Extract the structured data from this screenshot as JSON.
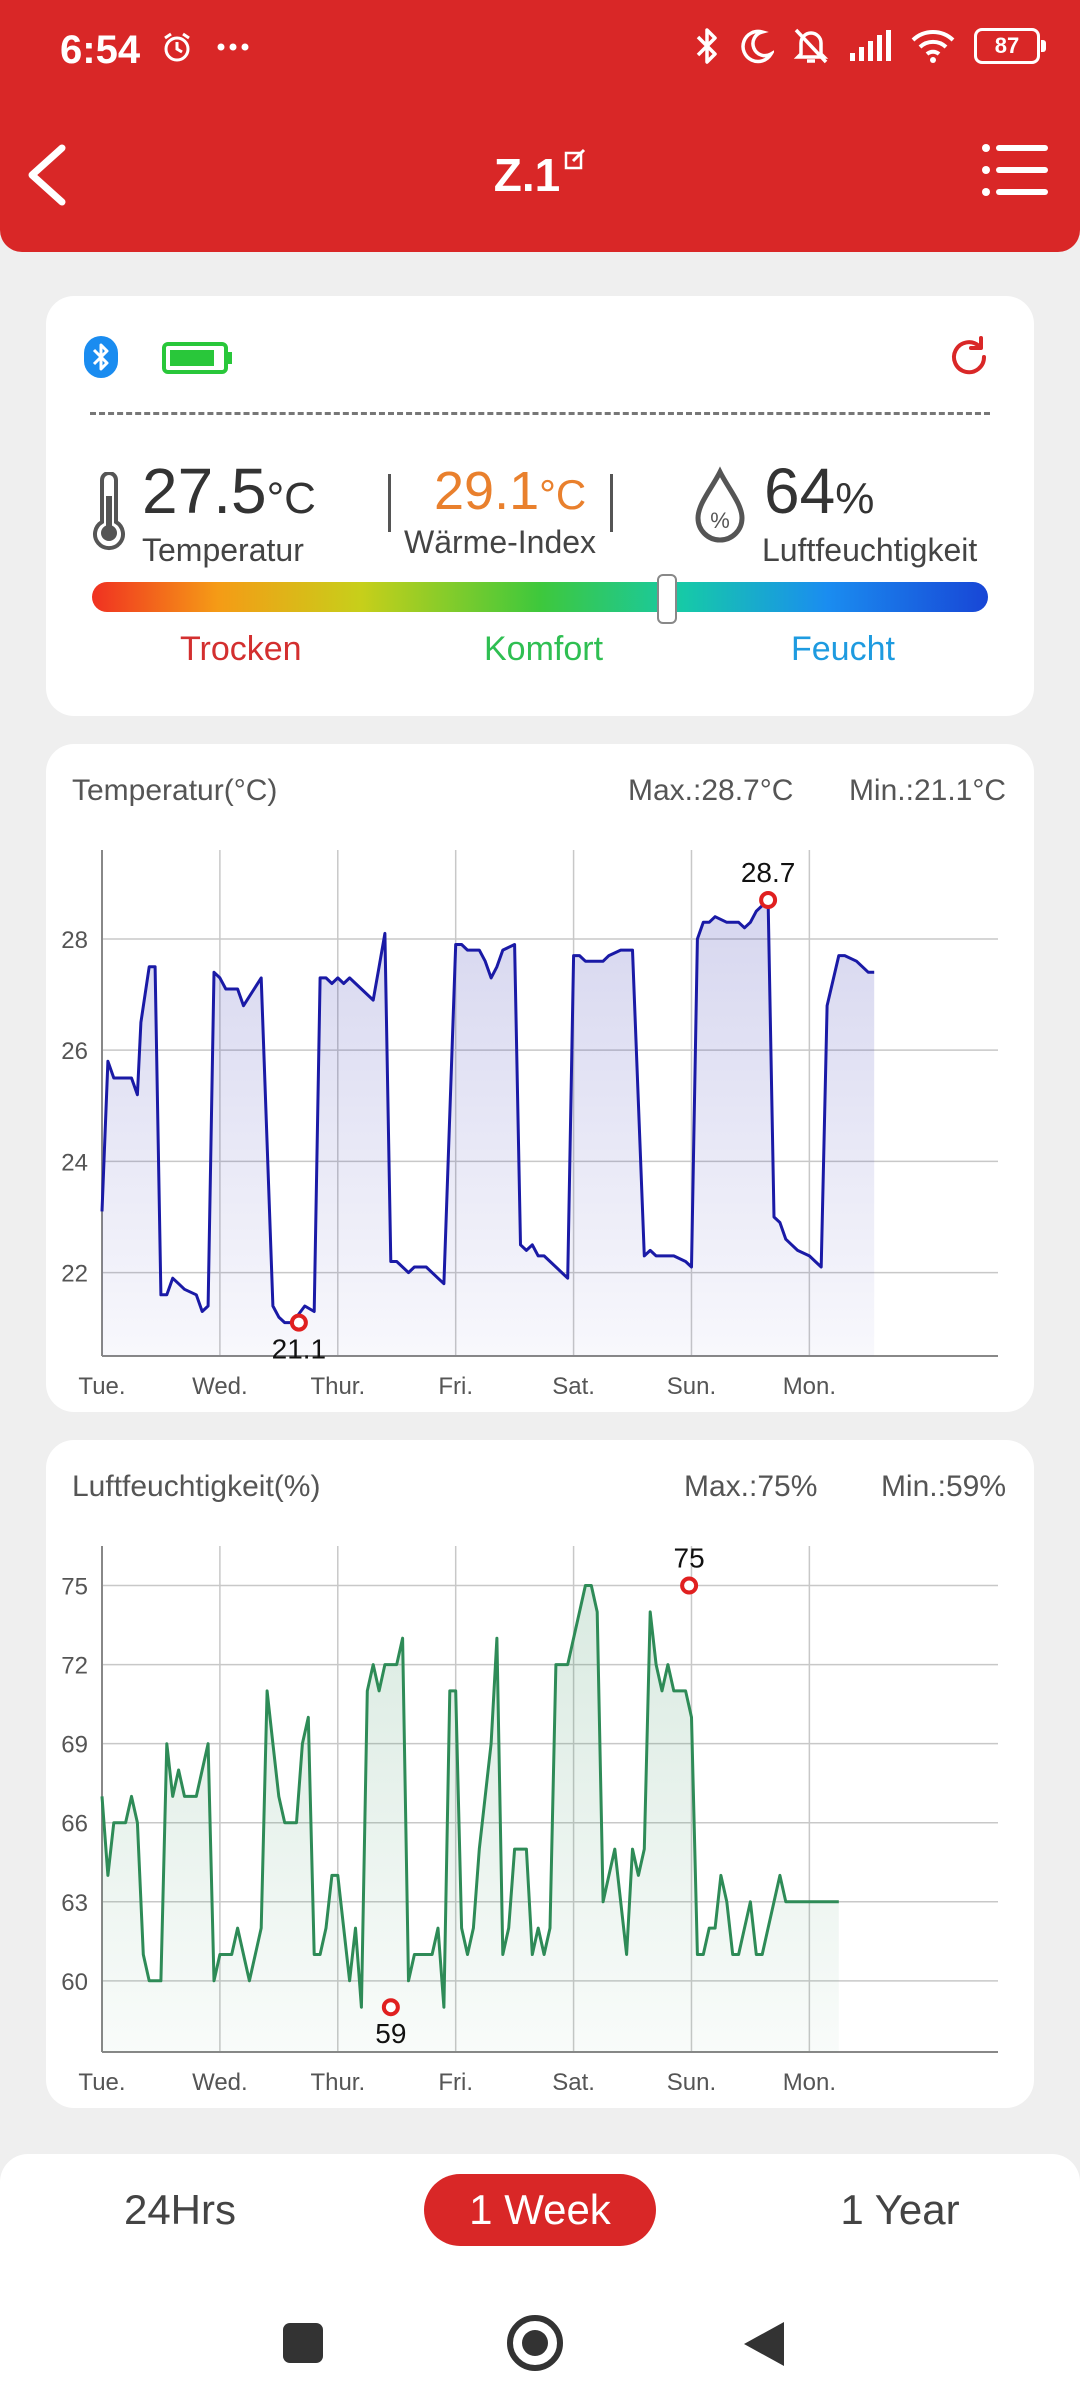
{
  "status_bar": {
    "time": "6:54",
    "battery": "87",
    "icons": [
      "alarm-icon",
      "more-dots-icon",
      "bluetooth-icon",
      "moon-icon",
      "muted-bell-icon",
      "signal-icon",
      "wifi-icon",
      "battery-icon"
    ]
  },
  "header": {
    "title": "Z.1",
    "bg_color": "#d92727"
  },
  "device": {
    "temperature_value": "27.5",
    "temperature_unit": "°C",
    "temperature_label": "Temperatur",
    "heat_index_value": "29.1",
    "heat_index_unit": "°C",
    "heat_index_label": "Wärme-Index",
    "humidity_value": "64",
    "humidity_unit": "%",
    "humidity_label": "Luftfeuchtigkeit",
    "humidity_icon_symbol": "%",
    "comfort_level": 0.64,
    "zones": {
      "dry": "Trocken",
      "comfort": "Komfort",
      "wet": "Feucht"
    },
    "zone_colors": {
      "dry": "#d32f2f",
      "comfort": "#2fbf52",
      "wet": "#1e9be0"
    }
  },
  "temp_panel": {
    "title": "Temperatur(°C)",
    "max": "Max.:28.7°C",
    "min": "Min.:21.1°C",
    "max_label": "28.7",
    "min_label": "21.1"
  },
  "hum_panel": {
    "title": "Luftfeuchtigkeit(%)",
    "max": "Max.:75%",
    "min": "Min.:59%",
    "max_label": "75",
    "min_label": "59"
  },
  "chart_data": [
    {
      "type": "area",
      "color": "#1a1aa6",
      "x_ticks": [
        "Tue.",
        "Wed.",
        "Thur.",
        "Fri.",
        "Sat.",
        "Sun.",
        "Mon."
      ],
      "xlim": [
        0,
        7.6
      ],
      "ylim": [
        20.5,
        29.6
      ],
      "y_ticks": [
        22,
        24,
        26,
        28
      ],
      "grid": true,
      "max_point": {
        "x": 5.65,
        "y": 28.7
      },
      "min_point": {
        "x": 1.67,
        "y": 21.1
      },
      "x": [
        0,
        0.05,
        0.1,
        0.25,
        0.3,
        0.33,
        0.4,
        0.45,
        0.5,
        0.55,
        0.6,
        0.65,
        0.7,
        0.8,
        0.85,
        0.9,
        0.95,
        1.0,
        1.05,
        1.1,
        1.15,
        1.2,
        1.35,
        1.45,
        1.5,
        1.55,
        1.6,
        1.65,
        1.72,
        1.8,
        1.85,
        1.9,
        1.95,
        2.0,
        2.05,
        2.1,
        2.3,
        2.35,
        2.4,
        2.45,
        2.5,
        2.6,
        2.65,
        2.75,
        2.85,
        2.9,
        3.0,
        3.05,
        3.1,
        3.15,
        3.2,
        3.25,
        3.3,
        3.35,
        3.4,
        3.5,
        3.55,
        3.6,
        3.65,
        3.7,
        3.75,
        3.85,
        3.9,
        3.95,
        4.0,
        4.05,
        4.1,
        4.15,
        4.25,
        4.3,
        4.4,
        4.5,
        4.6,
        4.65,
        4.7,
        4.75,
        4.85,
        4.95,
        5.0,
        5.05,
        5.1,
        5.15,
        5.2,
        5.3,
        5.35,
        5.4,
        5.45,
        5.5,
        5.55,
        5.6,
        5.65,
        5.7,
        5.75,
        5.8,
        5.85,
        5.9,
        6.0,
        6.05,
        6.1,
        6.15,
        6.25,
        6.3,
        6.4,
        6.5,
        6.55
      ],
      "y": [
        23.1,
        25.8,
        25.5,
        25.5,
        25.2,
        26.5,
        27.5,
        27.5,
        21.6,
        21.6,
        21.9,
        21.8,
        21.7,
        21.6,
        21.3,
        21.4,
        27.4,
        27.3,
        27.1,
        27.1,
        27.1,
        26.8,
        27.3,
        21.4,
        21.2,
        21.1,
        21.1,
        21.2,
        21.4,
        21.3,
        27.3,
        27.3,
        27.2,
        27.3,
        27.2,
        27.3,
        26.9,
        27.5,
        28.1,
        22.2,
        22.2,
        22.0,
        22.1,
        22.1,
        21.9,
        21.8,
        27.9,
        27.9,
        27.8,
        27.8,
        27.8,
        27.6,
        27.3,
        27.5,
        27.8,
        27.9,
        22.5,
        22.4,
        22.5,
        22.3,
        22.3,
        22.1,
        22.0,
        21.9,
        27.7,
        27.7,
        27.6,
        27.6,
        27.6,
        27.7,
        27.8,
        27.8,
        22.3,
        22.4,
        22.3,
        22.3,
        22.3,
        22.2,
        22.1,
        28.0,
        28.3,
        28.3,
        28.4,
        28.3,
        28.3,
        28.3,
        28.2,
        28.3,
        28.5,
        28.6,
        28.7,
        23.0,
        22.9,
        22.6,
        22.5,
        22.4,
        22.3,
        22.2,
        22.1,
        26.8,
        27.7,
        27.7,
        27.6,
        27.4,
        27.4
      ]
    },
    {
      "type": "area",
      "color": "#2e8b57",
      "x_ticks": [
        "Tue.",
        "Wed.",
        "Thur.",
        "Fri.",
        "Sat.",
        "Sun.",
        "Mon."
      ],
      "xlim": [
        0,
        7.6
      ],
      "ylim": [
        57.3,
        76.5
      ],
      "y_ticks": [
        60,
        63,
        66,
        69,
        72,
        75
      ],
      "grid": true,
      "max_point": {
        "x": 4.98,
        "y": 75
      },
      "min_point": {
        "x": 2.45,
        "y": 59
      },
      "x": [
        0,
        0.05,
        0.1,
        0.2,
        0.25,
        0.3,
        0.35,
        0.4,
        0.45,
        0.5,
        0.55,
        0.6,
        0.65,
        0.7,
        0.75,
        0.8,
        0.85,
        0.9,
        0.95,
        1.0,
        1.05,
        1.1,
        1.15,
        1.2,
        1.25,
        1.3,
        1.35,
        1.4,
        1.45,
        1.5,
        1.55,
        1.6,
        1.65,
        1.7,
        1.75,
        1.8,
        1.85,
        1.9,
        1.95,
        2.0,
        2.05,
        2.1,
        2.15,
        2.2,
        2.25,
        2.3,
        2.35,
        2.4,
        2.45,
        2.5,
        2.55,
        2.6,
        2.65,
        2.7,
        2.75,
        2.8,
        2.85,
        2.9,
        2.95,
        3.0,
        3.05,
        3.1,
        3.15,
        3.2,
        3.25,
        3.3,
        3.35,
        3.4,
        3.45,
        3.5,
        3.55,
        3.6,
        3.65,
        3.7,
        3.75,
        3.8,
        3.85,
        3.9,
        3.95,
        4.0,
        4.05,
        4.1,
        4.15,
        4.2,
        4.25,
        4.3,
        4.35,
        4.4,
        4.45,
        4.5,
        4.55,
        4.6,
        4.65,
        4.7,
        4.75,
        4.8,
        4.85,
        4.9,
        4.95,
        5.0,
        5.05,
        5.1,
        5.15,
        5.2,
        5.25,
        5.3,
        5.35,
        5.4,
        5.45,
        5.5,
        5.55,
        5.6,
        5.65,
        5.7,
        5.75,
        5.8,
        5.85,
        5.9,
        5.95,
        6.0,
        6.05,
        6.1,
        6.15,
        6.2,
        6.25
      ],
      "y": [
        67,
        64,
        66,
        66,
        67,
        66,
        61,
        60,
        60,
        60,
        69,
        67,
        68,
        67,
        67,
        67,
        68,
        69,
        60,
        61,
        61,
        61,
        62,
        61,
        60,
        61,
        62,
        71,
        69,
        67,
        66,
        66,
        66,
        69,
        70,
        61,
        61,
        62,
        64,
        64,
        62,
        60,
        62,
        59,
        71,
        72,
        71,
        72,
        72,
        72,
        73,
        60,
        61,
        61,
        61,
        61,
        62,
        59,
        71,
        71,
        62,
        61,
        62,
        65,
        67,
        69,
        73,
        61,
        62,
        65,
        65,
        65,
        61,
        62,
        61,
        62,
        72,
        72,
        72,
        73,
        74,
        75,
        75,
        74,
        63,
        64,
        65,
        63,
        61,
        65,
        64,
        65,
        74,
        72,
        71,
        72,
        71,
        71,
        71,
        70,
        61,
        61,
        62,
        62,
        64,
        63,
        61,
        61,
        62,
        63,
        61,
        61,
        62,
        63,
        64,
        63,
        63,
        63,
        63,
        63,
        63,
        63,
        63,
        63,
        63
      ]
    }
  ],
  "range_tabs": {
    "day": "24Hrs",
    "week": "1 Week",
    "year": "1 Year",
    "active": "week"
  }
}
